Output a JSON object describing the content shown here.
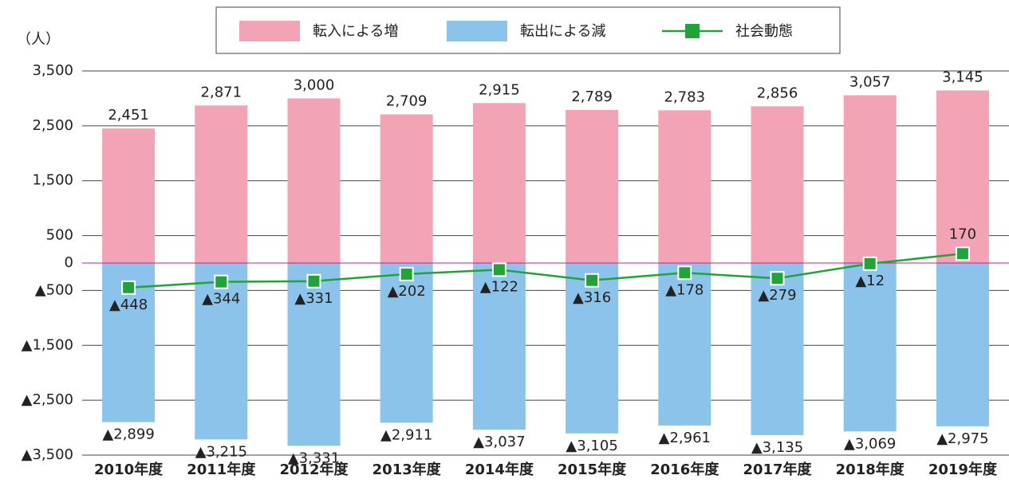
{
  "chart_data": {
    "type": "bar",
    "y_label": "（人）",
    "categories": [
      "2010年度",
      "2011年度",
      "2012年度",
      "2013年度",
      "2014年度",
      "2015年度",
      "2016年度",
      "2017年度",
      "2018年度",
      "2019年度"
    ],
    "series": [
      {
        "name": "転入による増",
        "type": "bar",
        "color": "#f2a3b5",
        "values": [
          2451,
          2871,
          3000,
          2709,
          2915,
          2789,
          2783,
          2856,
          3057,
          3145
        ],
        "value_labels": [
          "2,451",
          "2,871",
          "3,000",
          "2,709",
          "2,915",
          "2,789",
          "2,783",
          "2,856",
          "3,057",
          "3,145"
        ]
      },
      {
        "name": "転出による減",
        "type": "bar",
        "color": "#8cc3ea",
        "values": [
          -2899,
          -3215,
          -3331,
          -2911,
          -3037,
          -3105,
          -2961,
          -3135,
          -3069,
          -2975
        ],
        "value_labels": [
          "▲2,899",
          "▲3,215",
          "▲3,331",
          "▲2,911",
          "▲3,037",
          "▲3,105",
          "▲2,961",
          "▲3,135",
          "▲3,069",
          "▲2,975"
        ]
      },
      {
        "name": "社会動態",
        "type": "line",
        "color": "#22a33a",
        "values": [
          -448,
          -344,
          -331,
          -202,
          -122,
          -316,
          -178,
          -279,
          -12,
          170
        ],
        "value_labels": [
          "▲448",
          "▲344",
          "▲331",
          "▲202",
          "▲122",
          "▲316",
          "▲178",
          "▲279",
          "▲12",
          "170"
        ]
      }
    ],
    "ylim": [
      -3500,
      3500
    ],
    "yticks": [
      {
        "value": 3500,
        "label": "3,500"
      },
      {
        "value": 2500,
        "label": "2,500"
      },
      {
        "value": 1500,
        "label": "1,500"
      },
      500,
      0,
      {
        "value": -500,
        "label": "▲500"
      },
      {
        "value": -1500,
        "label": "▲1,500"
      },
      {
        "value": -2500,
        "label": "▲2,500"
      },
      {
        "value": -3500,
        "label": "▲3,500"
      }
    ],
    "grid": true,
    "zero_line_color": "#d6187f",
    "legend": "top"
  }
}
